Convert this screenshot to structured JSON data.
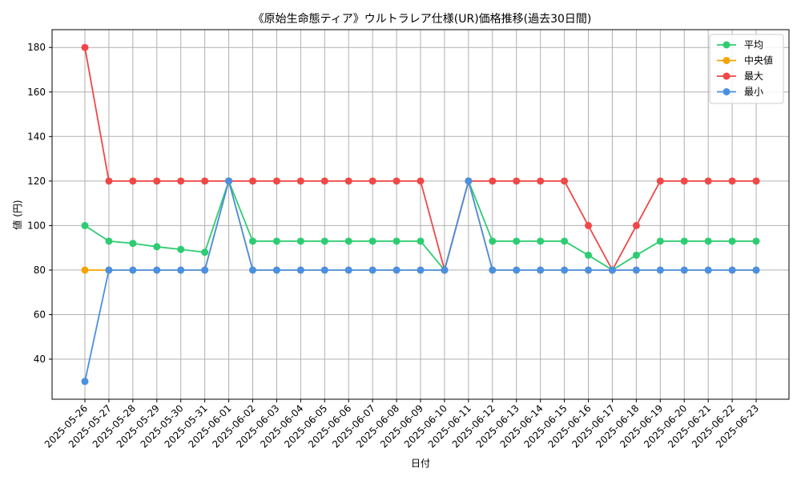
{
  "chart_data": {
    "type": "line",
    "title": "《原始生命態ティア》ウルトラレア仕様(UR)価格推移(過去30日間)",
    "xlabel": "日付",
    "ylabel": "値 (円)",
    "ylim": [
      22,
      188
    ],
    "yticks": [
      40,
      60,
      80,
      100,
      120,
      140,
      160,
      180
    ],
    "grid": true,
    "legend_position": "top-right",
    "categories": [
      "2025-05-26",
      "2025-05-27",
      "2025-05-28",
      "2025-05-29",
      "2025-05-30",
      "2025-05-31",
      "2025-06-01",
      "2025-06-02",
      "2025-06-03",
      "2025-06-04",
      "2025-06-05",
      "2025-06-06",
      "2025-06-07",
      "2025-06-08",
      "2025-06-09",
      "2025-06-10",
      "2025-06-11",
      "2025-06-12",
      "2025-06-13",
      "2025-06-14",
      "2025-06-15",
      "2025-06-16",
      "2025-06-17",
      "2025-06-18",
      "2025-06-19",
      "2025-06-20",
      "2025-06-21",
      "2025-06-22",
      "2025-06-23"
    ],
    "series": [
      {
        "name": "平均",
        "color": "#2ecc71",
        "values": [
          100,
          93,
          92,
          90.5,
          89.3,
          88,
          120,
          93,
          93,
          93,
          93,
          93,
          93,
          93,
          93,
          80,
          120,
          93,
          93,
          93,
          93,
          86.7,
          80,
          86.7,
          93,
          93,
          93,
          93,
          93
        ]
      },
      {
        "name": "中央値",
        "color": "#f5a300",
        "values": [
          80,
          80,
          80,
          80,
          80,
          80,
          120,
          80,
          80,
          80,
          80,
          80,
          80,
          80,
          80,
          80,
          120,
          80,
          80,
          80,
          80,
          80,
          80,
          80,
          80,
          80,
          80,
          80,
          80
        ]
      },
      {
        "name": "最大",
        "color": "#f04747",
        "values": [
          180,
          120,
          120,
          120,
          120,
          120,
          120,
          120,
          120,
          120,
          120,
          120,
          120,
          120,
          120,
          80,
          120,
          120,
          120,
          120,
          120,
          100,
          80,
          100,
          120,
          120,
          120,
          120,
          120
        ]
      },
      {
        "name": "最小",
        "color": "#4a90e2",
        "values": [
          30,
          80,
          80,
          80,
          80,
          80,
          120,
          80,
          80,
          80,
          80,
          80,
          80,
          80,
          80,
          80,
          120,
          80,
          80,
          80,
          80,
          80,
          80,
          80,
          80,
          80,
          80,
          80,
          80
        ]
      }
    ]
  }
}
